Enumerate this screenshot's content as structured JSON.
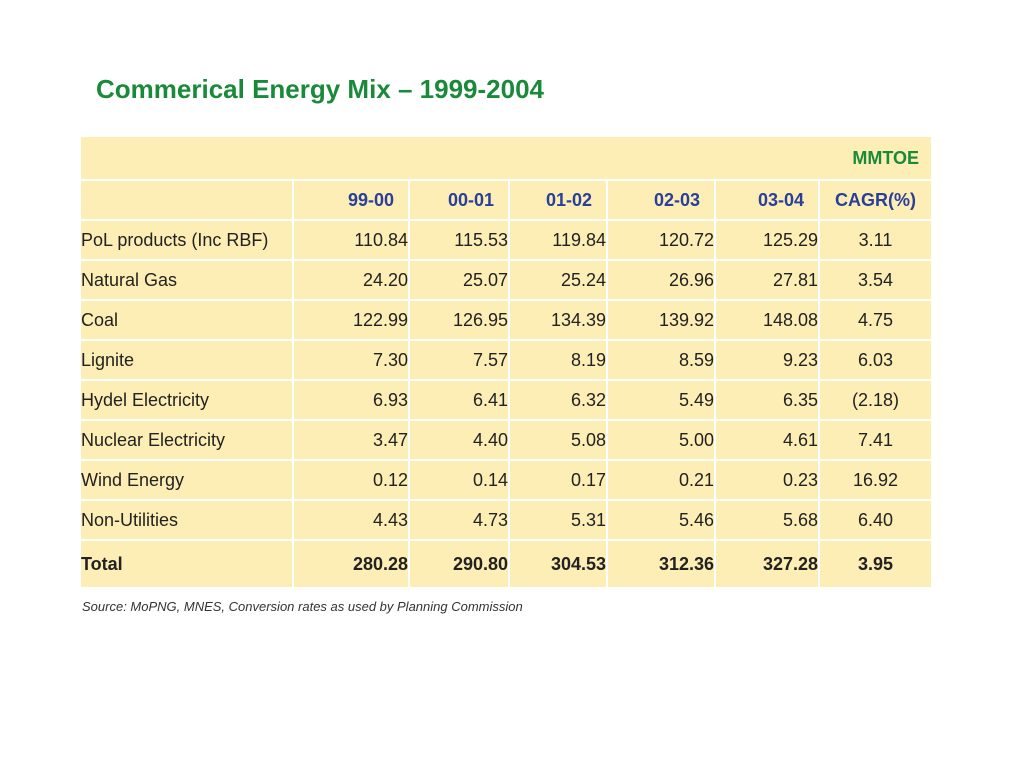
{
  "title": "Commerical Energy Mix – 1999-2004",
  "table": {
    "unit": "MMTOE",
    "headers": [
      "",
      "99-00",
      "00-01",
      "01-02",
      "02-03",
      "03-04",
      "CAGR(%)"
    ],
    "rows": [
      {
        "label": "PoL products (Inc RBF)",
        "values": [
          "110.84",
          "115.53",
          "119.84",
          "120.72",
          "125.29"
        ],
        "cagr": "3.11"
      },
      {
        "label": "Natural Gas",
        "values": [
          "24.20",
          "25.07",
          "25.24",
          "26.96",
          "27.81"
        ],
        "cagr": "3.54"
      },
      {
        "label": "Coal",
        "values": [
          "122.99",
          "126.95",
          "134.39",
          "139.92",
          "148.08"
        ],
        "cagr": "4.75"
      },
      {
        "label": "Lignite",
        "values": [
          "7.30",
          "7.57",
          "8.19",
          "8.59",
          "9.23"
        ],
        "cagr": "6.03"
      },
      {
        "label": "Hydel Electricity",
        "values": [
          "6.93",
          "6.41",
          "6.32",
          "5.49",
          "6.35"
        ],
        "cagr": "(2.18)"
      },
      {
        "label": "Nuclear Electricity",
        "values": [
          "3.47",
          "4.40",
          "5.08",
          "5.00",
          "4.61"
        ],
        "cagr": "7.41"
      },
      {
        "label": "Wind Energy",
        "values": [
          "0.12",
          "0.14",
          "0.17",
          "0.21",
          "0.23"
        ],
        "cagr": "16.92"
      },
      {
        "label": "Non-Utilities",
        "values": [
          "4.43",
          "4.73",
          "5.31",
          "5.46",
          "5.68"
        ],
        "cagr": "6.40"
      }
    ],
    "total": {
      "label": "Total",
      "values": [
        "280.28",
        "290.80",
        "304.53",
        "312.36",
        "327.28"
      ],
      "cagr": "3.95"
    }
  },
  "source": "Source: MoPNG, MNES, Conversion rates as used by Planning Commission",
  "colors": {
    "title": "#1a8a3a",
    "header_text": "#2a3f9a",
    "table_bg": "#fdeeb5"
  }
}
